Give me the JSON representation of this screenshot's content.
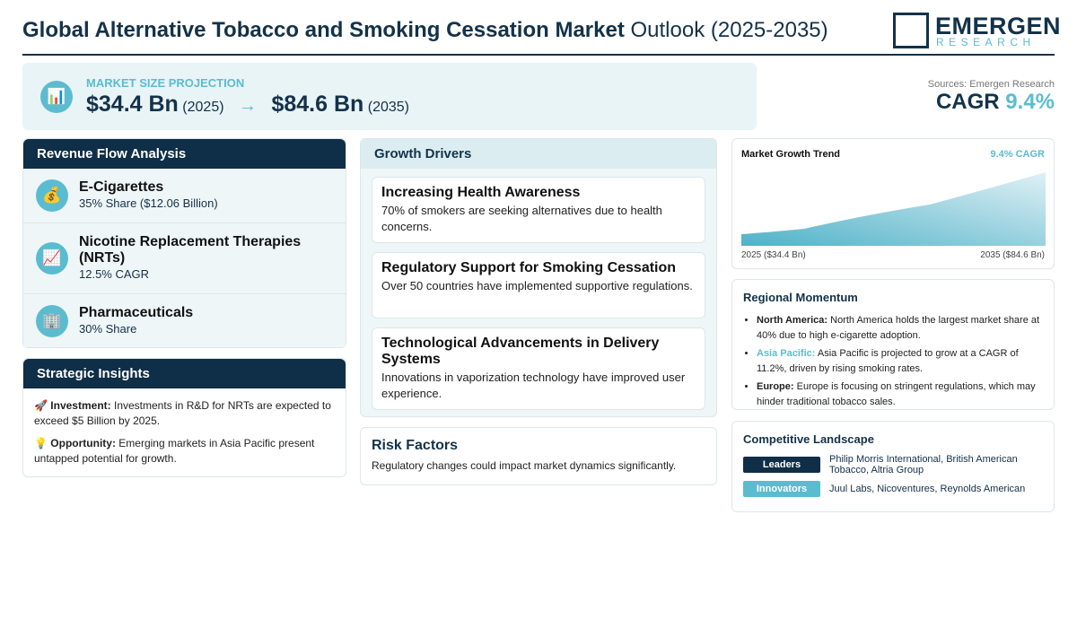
{
  "header": {
    "title_bold": "Global Alternative Tobacco and Smoking Cessation Market",
    "title_rest": "Outlook (2025-2035)",
    "logo_main": "EMERGEN",
    "logo_sub": "RESEARCH"
  },
  "market_size": {
    "icon": "📊",
    "label": "MARKET SIZE PROJECTION",
    "start_value": "$34.4 Bn",
    "start_year": "(2025)",
    "arrow": "→",
    "end_value": "$84.6 Bn",
    "end_year": "(2035)"
  },
  "source": {
    "text": "Sources: Emergen Research",
    "cagr_label": "CAGR",
    "cagr_value": "9.4%"
  },
  "revenue_flow": {
    "title": "Revenue Flow Analysis",
    "items": [
      {
        "icon": "💰",
        "name": "E-Cigarettes",
        "detail": "35% Share ($12.06 Billion)"
      },
      {
        "icon": "📈",
        "name": "Nicotine Replacement Therapies (NRTs)",
        "detail": "12.5% CAGR"
      },
      {
        "icon": "🏢",
        "name": "Pharmaceuticals",
        "detail": "30% Share"
      }
    ]
  },
  "strategic_insights": {
    "title": "Strategic Insights",
    "items": [
      {
        "icon": "🚀",
        "label": "Investment:",
        "text": "Investments in R&D for NRTs are expected to exceed $5 Billion by 2025."
      },
      {
        "icon": "💡",
        "label": "Opportunity:",
        "text": "Emerging markets in Asia Pacific present untapped potential for growth."
      }
    ]
  },
  "growth_drivers": {
    "title": "Growth Drivers",
    "items": [
      {
        "title": "Increasing Health Awareness",
        "text": "70% of smokers are seeking alternatives due to health concerns."
      },
      {
        "title": "Regulatory Support for Smoking Cessation",
        "text": "Over 50 countries have implemented supportive regulations."
      },
      {
        "title": "Technological Advancements in Delivery Systems",
        "text": "Innovations in vaporization technology have improved user experience."
      }
    ]
  },
  "risk_factors": {
    "title": "Risk Factors",
    "text": "Regulatory changes could impact market dynamics significantly."
  },
  "growth_trend": {
    "title": "Market Growth Trend",
    "cagr": "9.4% CAGR",
    "start_label": "2025 ($34.4 Bn)",
    "end_label": "2035 ($84.6 Bn)"
  },
  "regional": {
    "title": "Regional Momentum",
    "items": [
      {
        "region": "North America:",
        "text": "North America holds the largest market share at 40% due to high e-cigarette adoption."
      },
      {
        "region": "Asia Pacific:",
        "text": "Asia Pacific is projected to grow at a CAGR of 11.2%, driven by rising smoking rates."
      },
      {
        "region": "Europe:",
        "text": "Europe is focusing on stringent regulations, which may hinder traditional tobacco sales."
      }
    ]
  },
  "competitive": {
    "title": "Competitive Landscape",
    "rows": [
      {
        "tag": "Leaders",
        "text": "Philip Morris International, British American Tobacco, Altria Group"
      },
      {
        "tag": "Innovators",
        "text": "Juul Labs, Nicoventures, Reynolds American"
      }
    ]
  }
}
